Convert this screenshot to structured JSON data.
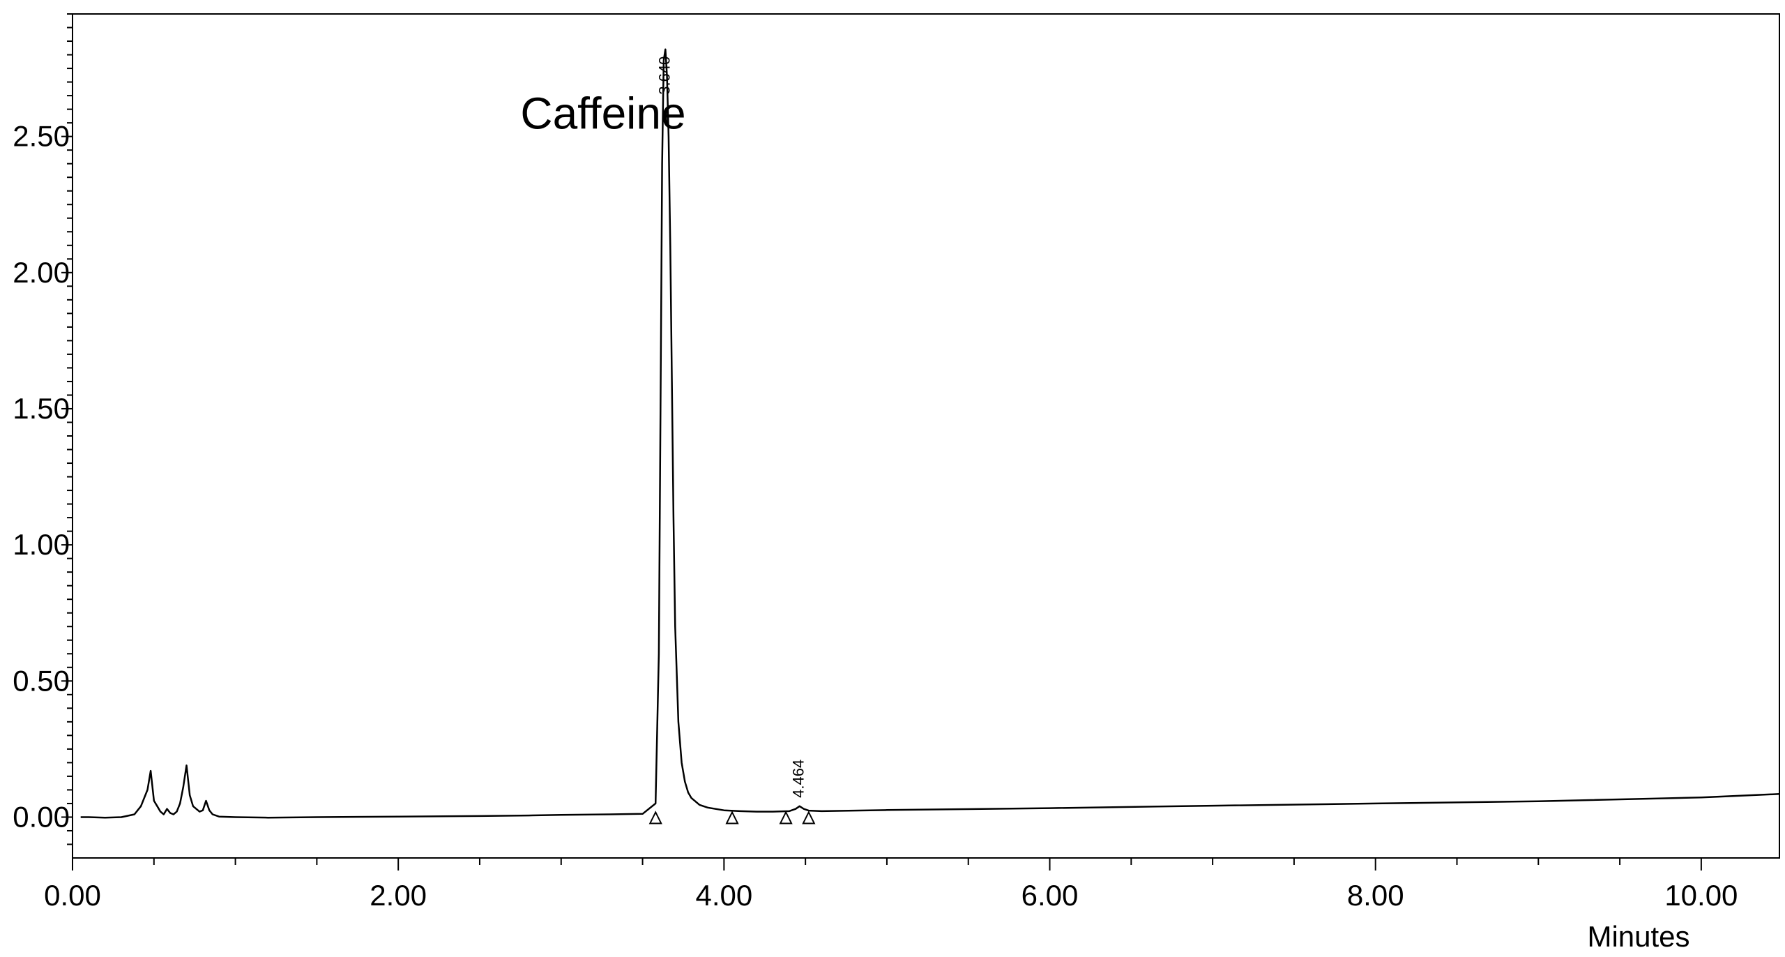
{
  "chart_data": {
    "type": "line",
    "title": "",
    "xlabel": "Minutes",
    "ylabel": "",
    "xlim": [
      0.0,
      10.48
    ],
    "ylim": [
      -0.15,
      2.95
    ],
    "grid": false,
    "x_ticks": [
      0.0,
      2.0,
      4.0,
      6.0,
      8.0,
      10.0
    ],
    "x_tick_labels": [
      "0.00",
      "2.00",
      "4.00",
      "6.00",
      "8.00",
      "10.00"
    ],
    "x_minor_step": 0.5,
    "y_ticks": [
      0.0,
      0.5,
      1.0,
      1.5,
      2.0,
      2.5
    ],
    "y_tick_labels": [
      "0.00",
      "0.50",
      "1.00",
      "1.50",
      "2.00",
      "2.50"
    ],
    "y_minor_step": 0.05,
    "series": [
      {
        "x": [
          0.05,
          0.1,
          0.2,
          0.3,
          0.38,
          0.42,
          0.46,
          0.48,
          0.5,
          0.52,
          0.54,
          0.56,
          0.58,
          0.6,
          0.62,
          0.64,
          0.66,
          0.68,
          0.7,
          0.72,
          0.74,
          0.76,
          0.78,
          0.8,
          0.82,
          0.84,
          0.86,
          0.9,
          1.0,
          1.2,
          1.5,
          2.0,
          2.5,
          2.8,
          3.0,
          3.3,
          3.5,
          3.58,
          3.6,
          3.61,
          3.62,
          3.63,
          3.64,
          3.65,
          3.66,
          3.67,
          3.68,
          3.69,
          3.7,
          3.72,
          3.74,
          3.76,
          3.78,
          3.8,
          3.85,
          3.9,
          4.0,
          4.1,
          4.2,
          4.3,
          4.4,
          4.44,
          4.464,
          4.49,
          4.52,
          4.6,
          5.0,
          6.0,
          7.0,
          8.0,
          9.0,
          10.0,
          10.48
        ],
        "y": [
          0.0,
          0.0,
          -0.002,
          0.0,
          0.01,
          0.04,
          0.1,
          0.17,
          0.06,
          0.04,
          0.02,
          0.01,
          0.03,
          0.015,
          0.01,
          0.02,
          0.05,
          0.11,
          0.19,
          0.08,
          0.04,
          0.03,
          0.02,
          0.025,
          0.06,
          0.025,
          0.01,
          0.002,
          0.0,
          -0.002,
          0.0,
          0.002,
          0.004,
          0.006,
          0.008,
          0.01,
          0.012,
          0.05,
          0.6,
          1.5,
          2.4,
          2.78,
          2.82,
          2.72,
          2.5,
          2.1,
          1.6,
          1.1,
          0.7,
          0.35,
          0.2,
          0.13,
          0.09,
          0.07,
          0.045,
          0.035,
          0.025,
          0.022,
          0.02,
          0.02,
          0.022,
          0.03,
          0.04,
          0.03,
          0.024,
          0.022,
          0.026,
          0.033,
          0.042,
          0.05,
          0.058,
          0.072,
          0.085
        ]
      }
    ],
    "peak_labels": [
      {
        "label": "3.640",
        "x": 3.64,
        "y": 2.82
      },
      {
        "label": "4.464",
        "x": 4.464,
        "y": 0.04
      }
    ],
    "baseline_markers": [
      {
        "x": 3.58,
        "y": 0.0
      },
      {
        "x": 4.05,
        "y": 0.0
      },
      {
        "x": 4.38,
        "y": 0.0
      },
      {
        "x": 4.52,
        "y": 0.0
      }
    ],
    "annotations": [
      {
        "text": "Caffeine",
        "x": 2.75,
        "y": 2.58
      }
    ]
  }
}
